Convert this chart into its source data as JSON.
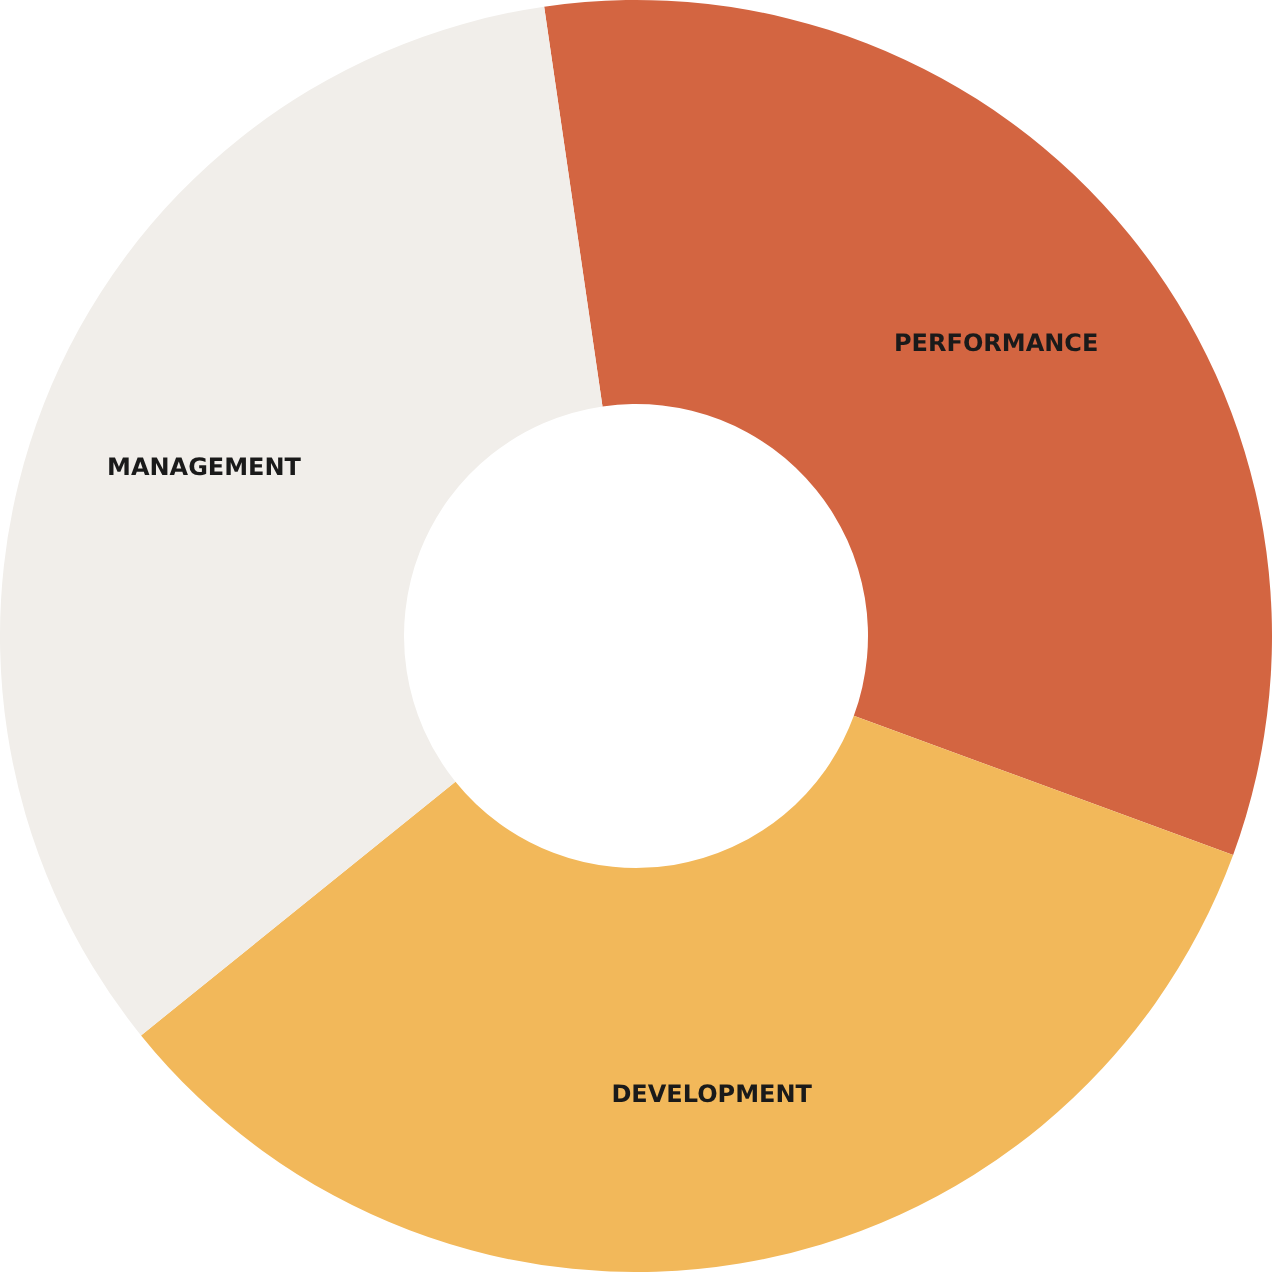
{
  "chart_data": {
    "type": "donut",
    "categories": [
      "PERFORMANCE",
      "DEVELOPMENT",
      "MANAGEMENT"
    ],
    "values": [
      32.9,
      33.6,
      33.5
    ],
    "colors": [
      "#d36541",
      "#f2b85a",
      "#f1eeea"
    ]
  }
}
